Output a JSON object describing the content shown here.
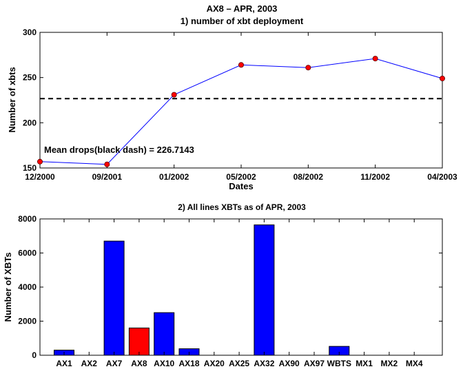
{
  "chart_data": [
    {
      "type": "line",
      "title": "AX8 – APR, 2003",
      "subtitle": "1) number of xbt deployment",
      "xlabel": "Dates",
      "ylabel": "Number of xbts",
      "x": [
        "12/2000",
        "09/2001",
        "01/2002",
        "05/2002",
        "08/2002",
        "11/2002",
        "04/2003"
      ],
      "values": [
        157,
        154,
        231,
        264,
        261,
        271,
        249
      ],
      "ylim": [
        150,
        300
      ],
      "yticks": [
        150,
        200,
        250,
        300
      ],
      "mean_line": 226.7143,
      "annotation": "Mean drops(black dash) = 226.7143",
      "line_color": "#0000ff",
      "marker_color": "#ff0000",
      "mean_color": "#000000",
      "grid": false
    },
    {
      "type": "bar",
      "title": "2) All lines XBTs as of APR, 2003",
      "xlabel": "",
      "ylabel": "Number of XBTs",
      "categories": [
        "AX1",
        "AX2",
        "AX7",
        "AX8",
        "AX10",
        "AX18",
        "AX20",
        "AX25",
        "AX32",
        "AX90",
        "AX97",
        "WBTS",
        "MX1",
        "MX2",
        "MX4"
      ],
      "values": [
        300,
        0,
        6700,
        1600,
        2500,
        380,
        0,
        0,
        7650,
        0,
        0,
        520,
        0,
        0,
        0
      ],
      "ylim": [
        0,
        8000
      ],
      "yticks": [
        0,
        2000,
        4000,
        6000,
        8000
      ],
      "bar_color": "#0000ff",
      "highlight_category": "AX8",
      "highlight_color": "#ff0000",
      "grid": false
    }
  ]
}
